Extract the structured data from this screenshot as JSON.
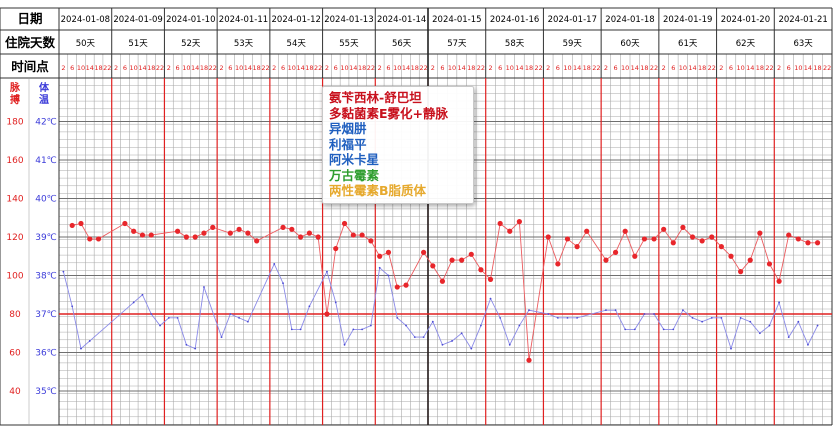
{
  "chart_data": {
    "type": "line",
    "header_labels": {
      "date": "日期",
      "day": "住院天数",
      "time": "时间点"
    },
    "col_titles": {
      "pulse": "脉搏",
      "temp": "体温"
    },
    "dates": [
      "2024-01-08",
      "2024-01-09",
      "2024-01-10",
      "2024-01-11",
      "2024-01-12",
      "2024-01-13",
      "2024-01-14",
      "2024-01-15",
      "2024-01-16",
      "2024-01-17",
      "2024-01-18",
      "2024-01-19",
      "2024-01-20",
      "2024-01-21"
    ],
    "hospital_days": [
      "50天",
      "51天",
      "52天",
      "53天",
      "54天",
      "55天",
      "56天",
      "57天",
      "58天",
      "59天",
      "60天",
      "61天",
      "62天",
      "63天"
    ],
    "time_points": [
      "2",
      "6",
      "10",
      "14",
      "18",
      "22"
    ],
    "pulse_ticks": [
      {
        "label": "180",
        "v": 180
      },
      {
        "label": "160",
        "v": 160
      },
      {
        "label": "140",
        "v": 140
      },
      {
        "label": "120",
        "v": 120
      },
      {
        "label": "100",
        "v": 100
      },
      {
        "label": "80",
        "v": 80
      },
      {
        "label": "60",
        "v": 60
      },
      {
        "label": "40",
        "v": 40
      }
    ],
    "temp_ticks": [
      {
        "label": "42℃",
        "v": 42
      },
      {
        "label": "41℃",
        "v": 41
      },
      {
        "label": "40℃",
        "v": 40
      },
      {
        "label": "39℃",
        "v": 39
      },
      {
        "label": "38℃",
        "v": 38
      },
      {
        "label": "37℃",
        "v": 37
      },
      {
        "label": "36℃",
        "v": 36
      },
      {
        "label": "35℃",
        "v": 35
      }
    ],
    "pulse_range": [
      20,
      190
    ],
    "reference_line": 80,
    "series": [
      {
        "name": "脉搏",
        "color": "#e8262b",
        "points": [
          [
            0,
            1,
            126
          ],
          [
            0,
            2,
            127
          ],
          [
            0,
            3,
            119
          ],
          [
            0,
            4,
            119
          ],
          [
            1,
            1,
            127
          ],
          [
            1,
            2,
            123
          ],
          [
            1,
            3,
            121
          ],
          [
            1,
            4,
            121
          ],
          [
            2,
            1,
            123
          ],
          [
            2,
            2,
            120
          ],
          [
            2,
            3,
            120
          ],
          [
            2,
            4,
            122
          ],
          [
            2,
            5,
            125
          ],
          [
            3,
            1,
            122
          ],
          [
            3,
            2,
            124
          ],
          [
            3,
            3,
            122
          ],
          [
            3,
            4,
            118
          ],
          [
            4,
            1,
            125
          ],
          [
            4,
            2,
            124
          ],
          [
            4,
            3,
            120
          ],
          [
            4,
            4,
            122
          ],
          [
            4,
            5,
            120
          ],
          [
            5,
            0,
            80
          ],
          [
            5,
            1,
            114
          ],
          [
            5,
            2,
            127
          ],
          [
            5,
            3,
            121
          ],
          [
            5,
            4,
            121
          ],
          [
            5,
            5,
            118
          ],
          [
            6,
            0,
            110
          ],
          [
            6,
            1,
            112
          ],
          [
            6,
            2,
            94
          ],
          [
            6,
            3,
            95
          ],
          [
            6,
            5,
            112
          ],
          [
            7,
            0,
            105
          ],
          [
            7,
            1,
            97
          ],
          [
            7,
            2,
            108
          ],
          [
            7,
            3,
            108
          ],
          [
            7,
            4,
            111
          ],
          [
            7,
            5,
            103
          ],
          [
            8,
            0,
            98
          ],
          [
            8,
            1,
            127
          ],
          [
            8,
            2,
            123
          ],
          [
            8,
            3,
            128
          ],
          [
            8,
            4,
            56
          ],
          [
            9,
            0,
            120
          ],
          [
            9,
            1,
            106
          ],
          [
            9,
            2,
            119
          ],
          [
            9,
            3,
            115
          ],
          [
            9,
            4,
            123
          ],
          [
            10,
            0,
            108
          ],
          [
            10,
            1,
            112
          ],
          [
            10,
            2,
            123
          ],
          [
            10,
            3,
            110
          ],
          [
            10,
            4,
            119
          ],
          [
            10,
            5,
            119
          ],
          [
            11,
            0,
            124
          ],
          [
            11,
            1,
            117
          ],
          [
            11,
            2,
            125
          ],
          [
            11,
            3,
            120
          ],
          [
            11,
            4,
            118
          ],
          [
            11,
            5,
            120
          ],
          [
            12,
            0,
            115
          ],
          [
            12,
            1,
            110
          ],
          [
            12,
            2,
            102
          ],
          [
            12,
            3,
            108
          ],
          [
            12,
            4,
            122
          ],
          [
            12,
            5,
            106
          ],
          [
            13,
            0,
            97
          ],
          [
            13,
            1,
            121
          ],
          [
            13,
            2,
            119
          ],
          [
            13,
            3,
            117
          ],
          [
            13,
            4,
            117
          ]
        ]
      },
      {
        "name": "体温",
        "color": "#6b6be8",
        "points": [
          [
            0,
            0,
            38.1
          ],
          [
            0,
            1,
            37.2
          ],
          [
            0,
            2,
            36.1
          ],
          [
            0,
            3,
            36.3
          ],
          [
            1,
            2,
            37.3
          ],
          [
            1,
            3,
            37.5
          ],
          [
            1,
            4,
            37.0
          ],
          [
            1,
            5,
            36.7
          ],
          [
            2,
            0,
            36.9
          ],
          [
            2,
            1,
            36.9
          ],
          [
            2,
            2,
            36.2
          ],
          [
            2,
            3,
            36.1
          ],
          [
            2,
            4,
            37.7
          ],
          [
            3,
            0,
            36.4
          ],
          [
            3,
            1,
            37.0
          ],
          [
            3,
            2,
            36.9
          ],
          [
            3,
            3,
            36.8
          ],
          [
            4,
            0,
            38.3
          ],
          [
            4,
            1,
            37.8
          ],
          [
            4,
            2,
            36.6
          ],
          [
            4,
            3,
            36.6
          ],
          [
            4,
            4,
            37.2
          ],
          [
            5,
            0,
            38.1
          ],
          [
            5,
            1,
            37.3
          ],
          [
            5,
            2,
            36.2
          ],
          [
            5,
            3,
            36.6
          ],
          [
            5,
            4,
            36.6
          ],
          [
            5,
            5,
            36.7
          ],
          [
            6,
            0,
            38.2
          ],
          [
            6,
            1,
            38.0
          ],
          [
            6,
            2,
            36.9
          ],
          [
            6,
            3,
            36.7
          ],
          [
            6,
            4,
            36.4
          ],
          [
            6,
            5,
            36.4
          ],
          [
            7,
            0,
            36.8
          ],
          [
            7,
            1,
            36.2
          ],
          [
            7,
            2,
            36.3
          ],
          [
            7,
            3,
            36.5
          ],
          [
            7,
            4,
            36.1
          ],
          [
            7,
            5,
            36.7
          ],
          [
            8,
            0,
            37.4
          ],
          [
            8,
            1,
            36.9
          ],
          [
            8,
            2,
            36.2
          ],
          [
            8,
            3,
            36.7
          ],
          [
            8,
            4,
            37.1
          ],
          [
            9,
            0,
            37.0
          ],
          [
            9,
            1,
            36.9
          ],
          [
            9,
            2,
            36.9
          ],
          [
            9,
            3,
            36.9
          ],
          [
            10,
            0,
            37.1
          ],
          [
            10,
            1,
            37.1
          ],
          [
            10,
            2,
            36.6
          ],
          [
            10,
            3,
            36.6
          ],
          [
            10,
            4,
            37.0
          ],
          [
            10,
            5,
            37.0
          ],
          [
            11,
            0,
            36.6
          ],
          [
            11,
            1,
            36.6
          ],
          [
            11,
            2,
            37.1
          ],
          [
            11,
            3,
            36.9
          ],
          [
            11,
            4,
            36.8
          ],
          [
            11,
            5,
            36.9
          ],
          [
            12,
            0,
            36.9
          ],
          [
            12,
            1,
            36.1
          ],
          [
            12,
            2,
            36.9
          ],
          [
            12,
            3,
            36.8
          ],
          [
            12,
            4,
            36.5
          ],
          [
            12,
            5,
            36.7
          ],
          [
            13,
            0,
            37.3
          ],
          [
            13,
            1,
            36.4
          ],
          [
            13,
            2,
            36.8
          ],
          [
            13,
            3,
            36.2
          ],
          [
            13,
            4,
            36.7
          ]
        ]
      }
    ],
    "legend": [
      {
        "label": "氨苄西林-舒巴坦",
        "color": "#c8101c"
      },
      {
        "label": "多黏菌素E雾化+静脉",
        "color": "#c8101c"
      },
      {
        "label": "异烟肼",
        "color": "#1f5fbf"
      },
      {
        "label": "利福平",
        "color": "#1f5fbf"
      },
      {
        "label": "阿米卡星",
        "color": "#1f5fbf"
      },
      {
        "label": "万古霉素",
        "color": "#2f9e2f"
      },
      {
        "label": "两性霉素B脂质体",
        "color": "#e6a92d"
      }
    ]
  }
}
